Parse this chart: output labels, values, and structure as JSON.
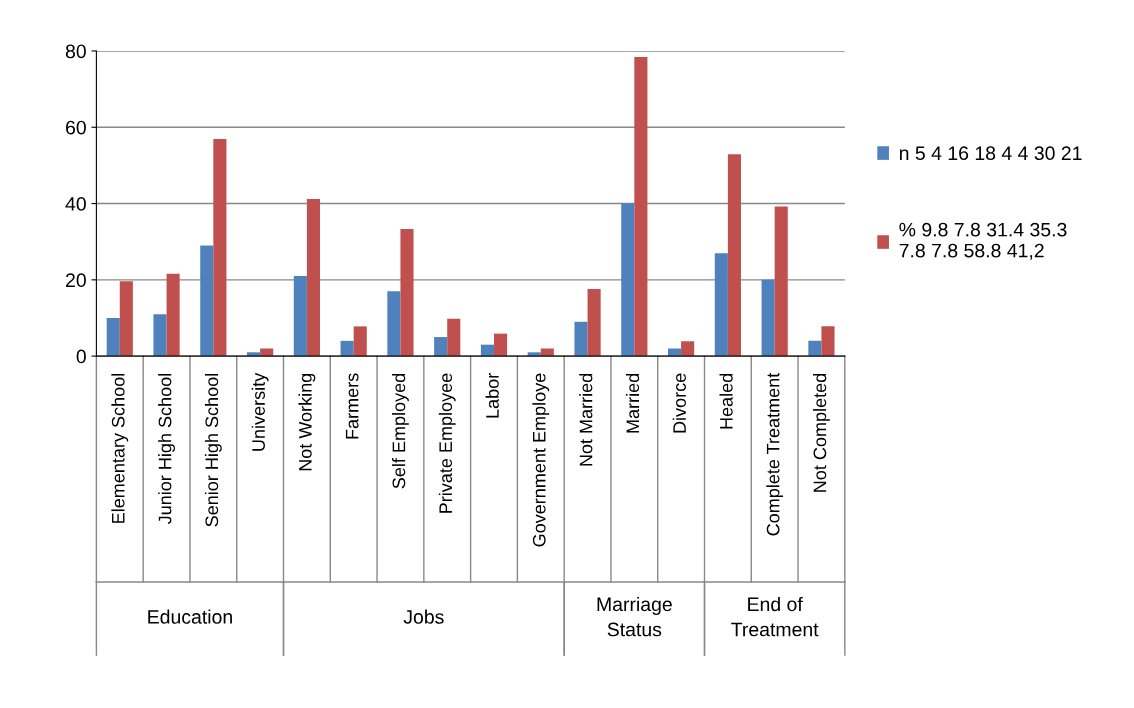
{
  "chart_data": {
    "type": "bar",
    "categories": [
      "Elementary School",
      "Junior High School",
      "Senior High School",
      "University",
      "Not Working",
      "Farmers",
      "Self Employed",
      "Private Employee",
      "Labor",
      "Government Employe",
      "Not Married",
      "Married",
      "Divorce",
      "Healed",
      "Complete Treatment",
      "Not Completed"
    ],
    "series": [
      {
        "name": "n 5 4 16 18 4 4 30 21",
        "color": "#4f81bd",
        "values": [
          10,
          11,
          29,
          1,
          21,
          4,
          17,
          5,
          3,
          1,
          9,
          40,
          2,
          27,
          20,
          4
        ]
      },
      {
        "name": "% 9.8 7.8 31.4 35.3 7.8 7.8 58.8 41,2",
        "color": "#c0504d",
        "values": [
          19.6,
          21.6,
          56.9,
          2,
          41.2,
          7.8,
          33.3,
          9.8,
          5.9,
          2,
          17.6,
          78.4,
          3.9,
          52.9,
          39.2,
          7.8
        ]
      }
    ],
    "annotations": [
      "Education",
      "Jobs",
      "Marriage Status",
      "End of Treatment"
    ],
    "ylim": [
      0,
      80
    ],
    "yticks": [
      0,
      20,
      40,
      60,
      80
    ],
    "grid": "y",
    "legend": "right"
  }
}
